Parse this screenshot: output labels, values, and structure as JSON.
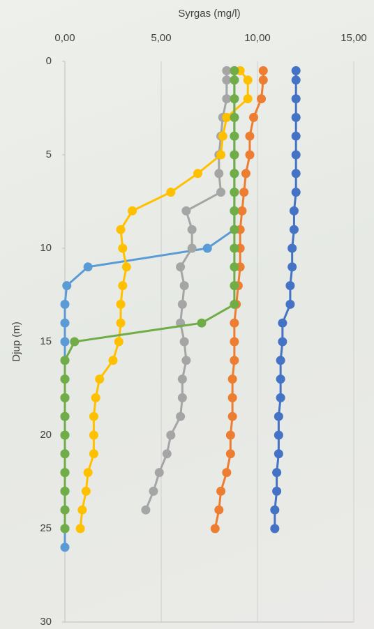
{
  "chart_data": {
    "type": "line",
    "title": "Syrgas (mg/l)",
    "y_label": "Djup (m)",
    "orientation": "vertical-profile",
    "y": [
      0.5,
      1,
      2,
      3,
      4,
      5,
      6,
      7,
      8,
      9,
      10,
      11,
      12,
      13,
      14,
      15,
      16,
      17,
      18,
      19,
      20,
      21,
      22,
      23,
      24,
      25,
      26
    ],
    "series": [
      {
        "color": "#5b9bd5",
        "values": [
          8.8,
          8.8,
          8.8,
          8.8,
          8.8,
          8.8,
          8.8,
          8.8,
          8.8,
          8.8,
          7.4,
          1.2,
          0.1,
          0,
          0,
          0,
          0,
          0,
          0,
          0,
          0,
          0,
          0,
          0,
          0,
          0,
          0
        ]
      },
      {
        "color": "#4472c4",
        "values": [
          12.0,
          12.0,
          12.0,
          12.0,
          12.0,
          12.0,
          12.0,
          12.0,
          11.9,
          11.9,
          11.8,
          11.8,
          11.7,
          11.7,
          11.3,
          11.3,
          11.2,
          11.2,
          11.2,
          11.1,
          11.1,
          11.1,
          11.0,
          11.0,
          10.9,
          10.9,
          null
        ]
      },
      {
        "color": "#ed7d31",
        "values": [
          10.3,
          10.3,
          10.2,
          9.8,
          9.6,
          9.6,
          9.4,
          9.3,
          9.2,
          9.1,
          9.1,
          9.1,
          9.0,
          8.9,
          8.8,
          8.8,
          8.8,
          8.7,
          8.7,
          8.7,
          8.6,
          8.6,
          8.4,
          8.1,
          8.0,
          7.8,
          null
        ]
      },
      {
        "color": "#a5a5a5",
        "values": [
          8.4,
          8.4,
          8.4,
          8.2,
          8.1,
          8.0,
          8.0,
          8.1,
          6.3,
          6.6,
          6.6,
          6.0,
          6.2,
          6.1,
          6.0,
          6.2,
          6.3,
          6.1,
          6.1,
          6.0,
          5.5,
          5.3,
          4.9,
          4.6,
          4.2,
          null,
          null
        ]
      },
      {
        "color": "#ffc000",
        "values": [
          9.1,
          9.5,
          9.5,
          8.4,
          8.2,
          8.1,
          6.9,
          5.5,
          3.5,
          2.9,
          3.0,
          3.2,
          3.0,
          2.9,
          2.9,
          2.8,
          2.5,
          1.8,
          1.6,
          1.5,
          1.5,
          1.5,
          1.2,
          1.1,
          0.9,
          0.8,
          null
        ]
      },
      {
        "color": "#70ad47",
        "values": [
          8.8,
          8.8,
          8.8,
          8.8,
          8.8,
          8.8,
          8.8,
          8.8,
          8.8,
          8.8,
          8.8,
          8.8,
          8.8,
          8.8,
          7.1,
          0.5,
          0,
          0,
          0,
          0,
          0,
          0,
          0,
          0,
          0,
          0,
          null
        ]
      }
    ],
    "xlim": [
      0,
      15
    ],
    "xticks": [
      {
        "value": 0,
        "label": "0,00"
      },
      {
        "value": 5,
        "label": "5,00"
      },
      {
        "value": 10,
        "label": "10,00"
      },
      {
        "value": 15,
        "label": "15,00"
      }
    ],
    "ylim": [
      0,
      30
    ],
    "yticks": [
      0,
      5,
      10,
      15,
      20,
      25,
      30
    ],
    "y_inverted": true,
    "grid": "x"
  }
}
